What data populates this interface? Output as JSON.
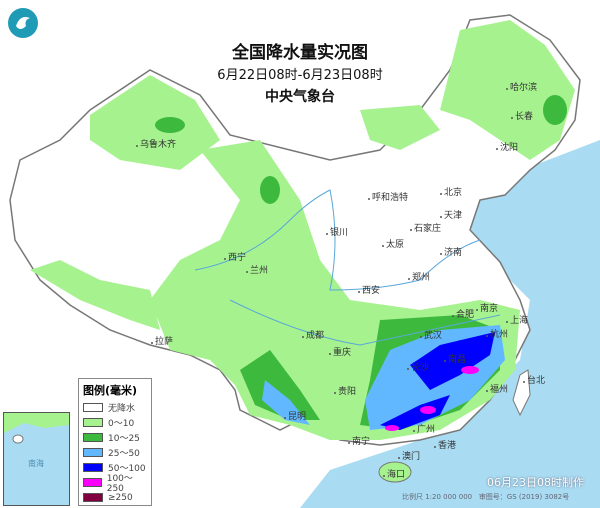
{
  "title": "全国降水量实况图",
  "period": "6月22日08时-6月23日08时",
  "agency": "中央气象台",
  "legend": {
    "title": "图例(毫米)",
    "items": [
      {
        "label": "无降水",
        "color": "#ffffff"
      },
      {
        "label": "0～10",
        "color": "#a6f28f"
      },
      {
        "label": "10～25",
        "color": "#3dba3d"
      },
      {
        "label": "25～50",
        "color": "#61b8ff"
      },
      {
        "label": "50～100",
        "color": "#0000ff"
      },
      {
        "label": "100～250",
        "color": "#fa00fa"
      },
      {
        "label": "≥250",
        "color": "#800040"
      }
    ]
  },
  "cities": [
    "乌鲁木齐",
    "拉萨",
    "西宁",
    "兰州",
    "银川",
    "呼和浩特",
    "北京",
    "天津",
    "太原",
    "石家庄",
    "济南",
    "郑州",
    "西安",
    "成都",
    "重庆",
    "贵阳",
    "昆明",
    "南宁",
    "广州",
    "香港",
    "澳门",
    "海口",
    "武汉",
    "长沙",
    "南昌",
    "合肥",
    "南京",
    "上海",
    "杭州",
    "福州",
    "台北",
    "哈尔滨",
    "长春",
    "沈阳"
  ],
  "made_time": "06月23日08时制作",
  "scale": "比例尺 1:20 000 000",
  "map_number": "审图号：GS (2019) 3082号",
  "inset_label": "南海"
}
